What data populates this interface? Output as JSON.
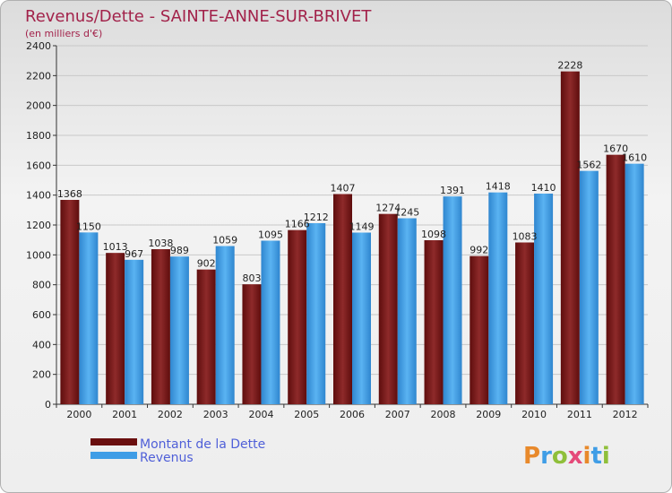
{
  "chart_data": {
    "type": "bar",
    "title": "Revenus/Dette - SAINTE-ANNE-SUR-BRIVET",
    "subtitle": "(en milliers d'€)",
    "categories": [
      "2000",
      "2001",
      "2002",
      "2003",
      "2004",
      "2005",
      "2006",
      "2007",
      "2008",
      "2009",
      "2010",
      "2011",
      "2012"
    ],
    "series": [
      {
        "name": "Montant de la Dette",
        "color": "#7a1515",
        "values": [
          1368,
          1013,
          1038,
          902,
          803,
          1166,
          1407,
          1274,
          1098,
          992,
          1083,
          2228,
          1670
        ],
        "labels": [
          "1368",
          "1013",
          "1038",
          "902",
          "803",
          "1166",
          "1407",
          "1274",
          "1098",
          "992",
          "1083",
          "2228",
          "1670"
        ]
      },
      {
        "name": "Revenus",
        "color": "#3f9de6",
        "values": [
          1150,
          967,
          989,
          1059,
          1095,
          1212,
          1149,
          1245,
          1391,
          1418,
          1410,
          1562,
          1610
        ],
        "labels": [
          "1150",
          "967",
          "989",
          "1059",
          "1095",
          "1212",
          "1149",
          "1245",
          "1391",
          "1418",
          "1410",
          "1562",
          "1610"
        ]
      }
    ],
    "ylim": [
      0,
      2400
    ],
    "yticks": [
      "0",
      "200",
      "400",
      "600",
      "800",
      "1000",
      "1200",
      "1400",
      "1600",
      "1800",
      "2000",
      "2200",
      "2400"
    ],
    "grid": true,
    "legend_position": "bottom-left"
  },
  "brand": {
    "logo_text": "Proxiti",
    "colors": [
      "#e8892b",
      "#3f9de6",
      "#8fbf3a",
      "#e54a7a",
      "#e8892b",
      "#3f9de6",
      "#8fbf3a"
    ]
  }
}
